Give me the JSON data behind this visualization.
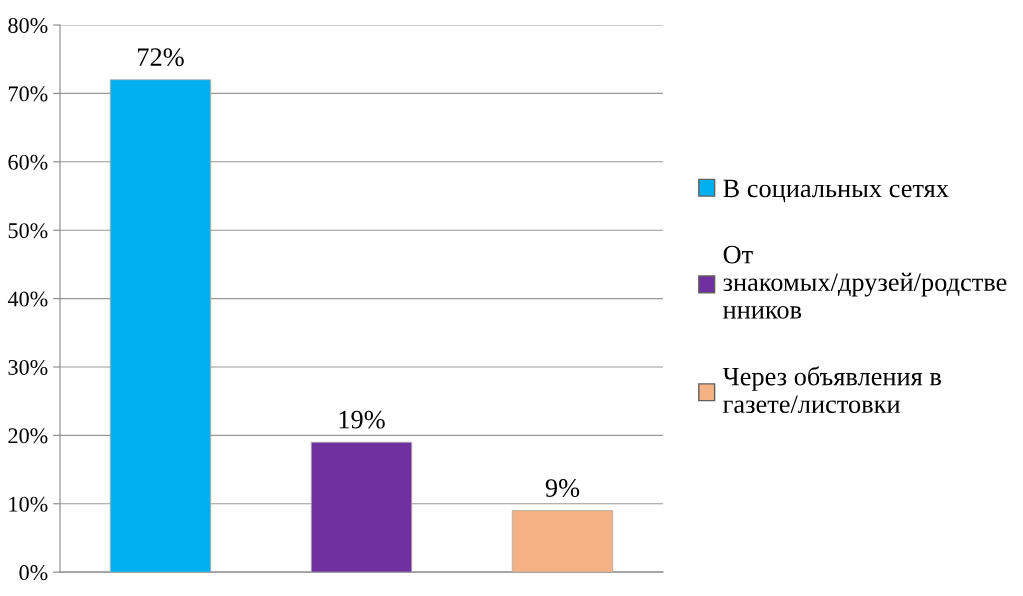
{
  "chart_data": {
    "type": "bar",
    "categories": [
      null,
      null,
      null
    ],
    "series": [
      {
        "name": "В социальных сетях",
        "color": "#00b0f0",
        "values": [
          72,
          null,
          null
        ],
        "value_labels": [
          "72%",
          null,
          null
        ]
      },
      {
        "name": "От знакомых/друзей/родственников",
        "color": "#7030a0",
        "values": [
          null,
          19,
          null
        ],
        "value_labels": [
          null,
          "19%",
          null
        ]
      },
      {
        "name": "Через объявления в газете/листовки",
        "color": "#f4b183",
        "values": [
          null,
          null,
          9
        ],
        "value_labels": [
          null,
          null,
          "9%"
        ]
      }
    ],
    "ylim": [
      0,
      80
    ],
    "yticks": [
      {
        "value": 0,
        "label": "0%"
      },
      {
        "value": 10,
        "label": "10%"
      },
      {
        "value": 20,
        "label": "20%"
      },
      {
        "value": 30,
        "label": "30%"
      },
      {
        "value": 40,
        "label": "40%"
      },
      {
        "value": 50,
        "label": "50%"
      },
      {
        "value": 60,
        "label": "60%"
      },
      {
        "value": 70,
        "label": "70%"
      },
      {
        "value": 80,
        "label": "80%"
      }
    ],
    "grid": "y",
    "legend": "right"
  }
}
